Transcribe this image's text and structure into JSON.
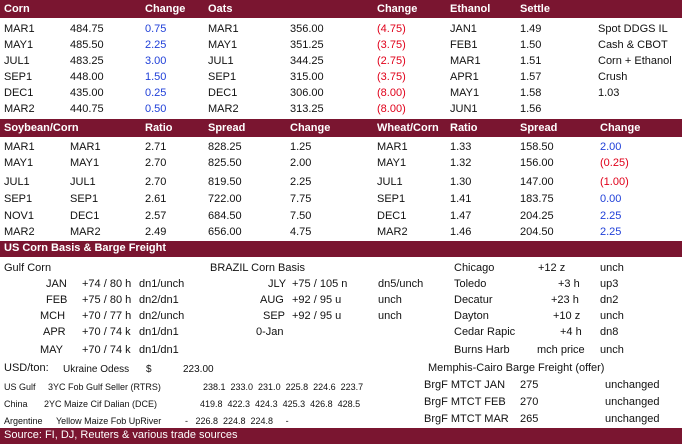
{
  "colors": {
    "band": "#7a1530",
    "up": "#1f3fd8",
    "down": "#e0001a"
  },
  "top": {
    "headers": [
      "Corn",
      "Change",
      "Oats",
      "Change",
      "Ethanol",
      "Settle"
    ],
    "rows": [
      {
        "corn_m": "MAR1",
        "corn_p": "484.75",
        "corn_c": "0.75",
        "oats_m": "MAR1",
        "oats_p": "356.00",
        "oats_c": "(4.75)",
        "eth_m": "JAN1",
        "eth_p": "1.49",
        "note": "Spot DDGS IL"
      },
      {
        "corn_m": "MAY1",
        "corn_p": "485.50",
        "corn_c": "2.25",
        "oats_m": "MAY1",
        "oats_p": "351.25",
        "oats_c": "(3.75)",
        "eth_m": "FEB1",
        "eth_p": "1.50",
        "note": "Cash & CBOT"
      },
      {
        "corn_m": "JUL1",
        "corn_p": "483.25",
        "corn_c": "3.00",
        "oats_m": "JUL1",
        "oats_p": "344.25",
        "oats_c": "(2.75)",
        "eth_m": "MAR1",
        "eth_p": "1.51",
        "note": "Corn + Ethanol"
      },
      {
        "corn_m": "SEP1",
        "corn_p": "448.00",
        "corn_c": "1.50",
        "oats_m": "SEP1",
        "oats_p": "315.00",
        "oats_c": "(3.75)",
        "eth_m": "APR1",
        "eth_p": "1.57",
        "note": "Crush"
      },
      {
        "corn_m": "DEC1",
        "corn_p": "435.00",
        "corn_c": "0.25",
        "oats_m": "DEC1",
        "oats_p": "306.00",
        "oats_c": "(8.00)",
        "eth_m": "MAY1",
        "eth_p": "1.58",
        "note": "1.03"
      },
      {
        "corn_m": "MAR2",
        "corn_p": "440.75",
        "corn_c": "0.50",
        "oats_m": "MAR2",
        "oats_p": "313.25",
        "oats_c": "(8.00)",
        "eth_m": "JUN1",
        "eth_p": "1.56",
        "note": ""
      }
    ]
  },
  "ratio": {
    "headers": [
      "Soybean/Corn",
      "Ratio",
      "Spread",
      "Change",
      "Wheat/Corn",
      "Ratio",
      "Spread",
      "Change"
    ],
    "rows": [
      {
        "s1": "MAR1",
        "c1": "MAR1",
        "r1": "2.71",
        "sp1": "828.25",
        "ch1": "1.25",
        "w": "MAR1",
        "r2": "1.33",
        "sp2": "158.50",
        "ch2": "2.00"
      },
      {
        "s1": "MAY1",
        "c1": "MAY1",
        "r1": "2.70",
        "sp1": "825.50",
        "ch1": "2.00",
        "w": "MAY1",
        "r2": "1.32",
        "sp2": "156.00",
        "ch2": "(0.25)"
      },
      {
        "s1": "JUL1",
        "c1": "JUL1",
        "r1": "2.70",
        "sp1": "819.50",
        "ch1": "2.25",
        "w": "JUL1",
        "r2": "1.30",
        "sp2": "147.00",
        "ch2": "(1.00)"
      },
      {
        "s1": "SEP1",
        "c1": "SEP1",
        "r1": "2.61",
        "sp1": "722.00",
        "ch1": "7.75",
        "w": "SEP1",
        "r2": "1.41",
        "sp2": "183.75",
        "ch2": "0.00"
      },
      {
        "s1": "NOV1",
        "c1": "DEC1",
        "r1": "2.57",
        "sp1": "684.50",
        "ch1": "7.50",
        "w": "DEC1",
        "r2": "1.47",
        "sp2": "204.25",
        "ch2": "2.25"
      },
      {
        "s1": "MAR2",
        "c1": "MAR2",
        "r1": "2.49",
        "sp1": "656.00",
        "ch1": "4.75",
        "w": "MAR2",
        "r2": "1.46",
        "sp2": "204.50",
        "ch2": "2.25"
      }
    ]
  },
  "basis": {
    "title": "US Corn Basis & Barge Freight",
    "gulf_title": "Gulf Corn",
    "brazil_title": "BRAZIL Corn Basis",
    "gulf": [
      {
        "m": "JAN",
        "v": "+74 / 80 h",
        "t": "dn1/unch"
      },
      {
        "m": "FEB",
        "v": "+75 / 80 h",
        "t": "dn2/dn1"
      },
      {
        "m": "MCH",
        "v": "+70 / 77 h",
        "t": "dn2/unch"
      },
      {
        "m": "APR",
        "v": "+70 / 74 k",
        "t": "dn1/dn1"
      },
      {
        "m": "MAY",
        "v": "+70 / 74 k",
        "t": "dn1/dn1"
      }
    ],
    "brazil": [
      {
        "m": "JLY",
        "v": "+75 / 105 n",
        "t": "dn5/unch"
      },
      {
        "m": "AUG",
        "v": "+92 / 95 u",
        "t": "unch"
      },
      {
        "m": "SEP",
        "v": "+92 / 95 u",
        "t": "unch"
      }
    ],
    "brazil_date": "0-Jan",
    "interior": [
      {
        "loc": "Chicago",
        "v": "+12 z",
        "t": "unch"
      },
      {
        "loc": "Toledo",
        "v": "+3 h",
        "t": "up3"
      },
      {
        "loc": "Decatur",
        "v": "+23 h",
        "t": "dn2"
      },
      {
        "loc": "Dayton",
        "v": "+10 z",
        "t": "unch"
      },
      {
        "loc": "Cedar Rapic",
        "v": "+4 h",
        "t": "dn8"
      },
      {
        "loc": "Burns Harb",
        "v": "mch price",
        "t": "unch"
      }
    ]
  },
  "usd": {
    "label": "USD/ton:",
    "odessa_label": "Ukraine Odess",
    "odessa_cur": "$",
    "odessa_val": "223.00",
    "rows": [
      {
        "origin": "US Gulf",
        "desc": "3YC Fob Gulf Seller (RTRS)",
        "vals": "238.1  233.0  231.0  225.8  224.6  223.7"
      },
      {
        "origin": "China",
        "desc": "2YC Maize Cif Dalian (DCE)",
        "vals": "419.8  422.3  424.3  425.3  426.8  428.5"
      },
      {
        "origin": "Argentine",
        "desc": "Yellow Maize Fob UpRiver",
        "vals": "-   226.8  224.8  224.8     -"
      }
    ]
  },
  "barge": {
    "title": "Memphis-Cairo Barge Freight (offer)",
    "rows": [
      {
        "name": "BrgF MTCT JAN",
        "v": "275",
        "t": "unchanged"
      },
      {
        "name": "BrgF MTCT FEB",
        "v": "270",
        "t": "unchanged"
      },
      {
        "name": "BrgF MTCT MAR",
        "v": "265",
        "t": "unchanged"
      }
    ]
  },
  "footer": {
    "source": "Source: FI, DJ, Reuters & various trade sources"
  }
}
